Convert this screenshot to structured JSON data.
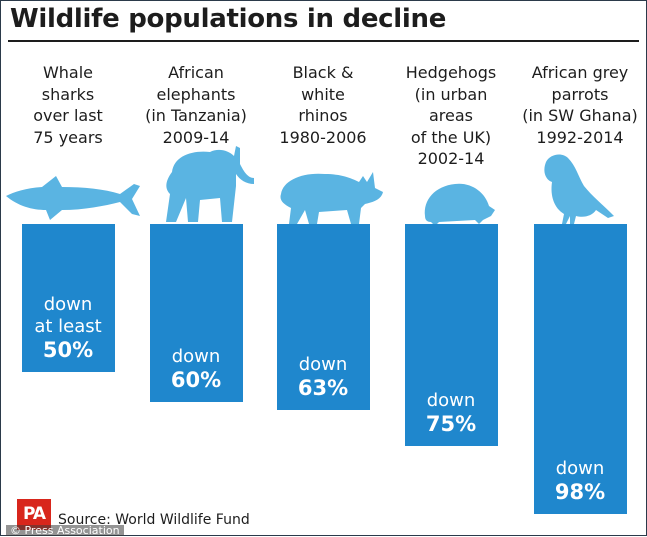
{
  "title": "Wildlife populations in decline",
  "source": "Source: World Wildlife Fund",
  "logo_text": "PA",
  "credit": "© Press Association",
  "colors": {
    "bar": "#1f87cd",
    "animal": "#5ab4e2",
    "logo": "#d8261c"
  },
  "chart_data": {
    "type": "bar",
    "title": "Wildlife populations in decline",
    "value_unit": "% decline",
    "categories": [
      "Whale sharks over last 75 years",
      "African elephants (in Tanzania) 2009-14",
      "Black & white rhinos 1980-2006",
      "Hedgehogs (in urban areas of the UK) 2002-14",
      "African grey parrots (in SW Ghana) 1992-2014"
    ],
    "values": [
      50,
      60,
      63,
      75,
      98
    ],
    "ylim": [
      0,
      100
    ],
    "grid": false,
    "items": [
      {
        "label_lines": [
          "Whale",
          "sharks",
          "over last",
          "75 years"
        ],
        "icon": "whale-shark-icon",
        "value": 50,
        "text_lines": [
          "down",
          "at least"
        ],
        "pct_text": "50%"
      },
      {
        "label_lines": [
          "African",
          "elephants",
          "(in Tanzania)",
          "2009-14"
        ],
        "icon": "elephant-icon",
        "value": 60,
        "text_lines": [
          "down"
        ],
        "pct_text": "60%"
      },
      {
        "label_lines": [
          "Black &",
          "white",
          "rhinos",
          "1980-2006"
        ],
        "icon": "rhino-icon",
        "value": 63,
        "text_lines": [
          "down"
        ],
        "pct_text": "63%"
      },
      {
        "label_lines": [
          "Hedgehogs",
          "(in urban",
          "areas",
          "of the UK)",
          "2002-14"
        ],
        "icon": "hedgehog-icon",
        "value": 75,
        "text_lines": [
          "down"
        ],
        "pct_text": "75%"
      },
      {
        "label_lines": [
          "African grey",
          "parrots",
          "(in SW Ghana)",
          "1992-2014"
        ],
        "icon": "parrot-icon",
        "value": 98,
        "text_lines": [
          "down"
        ],
        "pct_text": "98%"
      }
    ]
  }
}
